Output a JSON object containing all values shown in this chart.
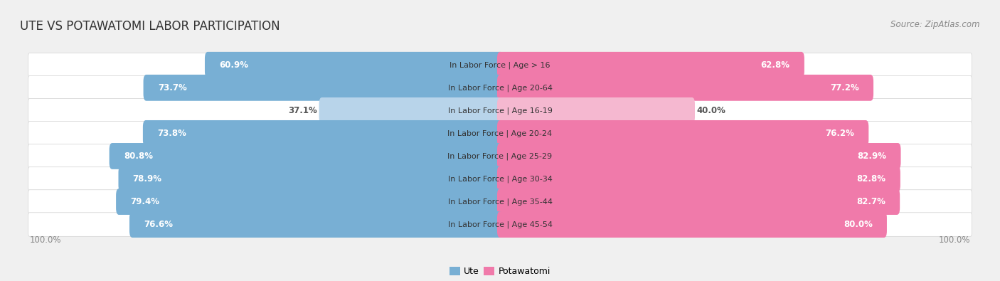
{
  "title": "UTE VS POTAWATOMI LABOR PARTICIPATION",
  "source": "Source: ZipAtlas.com",
  "categories": [
    "In Labor Force | Age > 16",
    "In Labor Force | Age 20-64",
    "In Labor Force | Age 16-19",
    "In Labor Force | Age 20-24",
    "In Labor Force | Age 25-29",
    "In Labor Force | Age 30-34",
    "In Labor Force | Age 35-44",
    "In Labor Force | Age 45-54"
  ],
  "ute_values": [
    60.9,
    73.7,
    37.1,
    73.8,
    80.8,
    78.9,
    79.4,
    76.6
  ],
  "potawatomi_values": [
    62.8,
    77.2,
    40.0,
    76.2,
    82.9,
    82.8,
    82.7,
    80.0
  ],
  "ute_color_full": "#78afd4",
  "ute_color_light": "#b8d4ea",
  "potawatomi_color_full": "#f07aaa",
  "potawatomi_color_light": "#f5b8d0",
  "row_bg_color": "#ffffff",
  "row_border_color": "#d8d8d8",
  "outer_bg_color": "#f0f0f0",
  "label_white": "#ffffff",
  "label_dark": "#555555",
  "label_dark_outside": "#555555",
  "title_color": "#333333",
  "source_color": "#888888",
  "axis_label_color": "#888888",
  "title_fontsize": 12,
  "source_fontsize": 8.5,
  "bar_label_fontsize": 8.5,
  "cat_label_fontsize": 8,
  "legend_fontsize": 9,
  "axis_fontsize": 8.5,
  "max_val": 100.0,
  "light_threshold": 50
}
